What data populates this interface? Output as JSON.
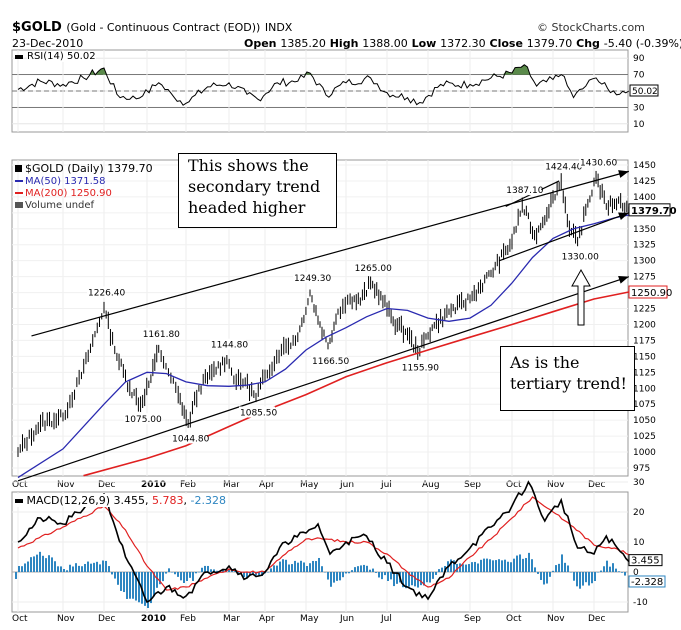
{
  "header": {
    "symbol": "$GOLD",
    "name": "(Gold - Continuous Contract (EOD))",
    "exchange": "INDX",
    "source": "© StockCharts.com",
    "date": "23-Dec-2010",
    "open_label": "Open",
    "open": "1385.20",
    "high_label": "High",
    "high": "1388.00",
    "low_label": "Low",
    "low": "1372.30",
    "close_label": "Close",
    "close": "1379.70",
    "chg_label": "Chg",
    "chg": "-5.40 (-0.39%)"
  },
  "rsi_panel": {
    "label": "RSI(14) 50.02",
    "value_tag": "50.02",
    "ticks": [
      "90",
      "70",
      "50",
      "30",
      "10"
    ]
  },
  "price_panel": {
    "legend": [
      "$GOLD (Daily) 1379.70",
      "MA(50) 1371.58",
      "MA(200) 1250.90",
      "Volume undef"
    ],
    "last_price_tag": "1379.70",
    "ma200_tag": "1250.90",
    "y_ticks": [
      "1450",
      "1425",
      "1400",
      "1375",
      "1350",
      "1325",
      "1300",
      "1275",
      "1250",
      "1225",
      "1200",
      "1175",
      "1150",
      "1125",
      "1100",
      "1075",
      "1050",
      "1025",
      "1000",
      "975"
    ],
    "annotations": [
      "1226.40",
      "1161.80",
      "1075.00",
      "1144.80",
      "1044.80",
      "1085.50",
      "1249.30",
      "1166.50",
      "1265.00",
      "1155.90",
      "1387.10",
      "1424.40",
      "1430.60",
      "1330.00"
    ]
  },
  "callouts": {
    "secondary": "This shows the secondary trend headed higher",
    "tertiary": "As is the tertiary trend!"
  },
  "macd_panel": {
    "label": "MACD(12,26,9)",
    "v1": "3.455",
    "v2": "5.783",
    "v3": "-2.328",
    "ticks": [
      "30",
      "20",
      "10",
      "0",
      "-10"
    ],
    "tag1": "3.455",
    "tag2": "-2.328"
  },
  "x_axis": {
    "labels": [
      "Oct",
      "Nov",
      "Dec",
      "2010",
      "Feb",
      "Mar",
      "Apr",
      "May",
      "Jun",
      "Jul",
      "Aug",
      "Sep",
      "Oct",
      "Nov",
      "Dec"
    ]
  },
  "colors": {
    "price": "#000000",
    "ma50": "#2a2ab0",
    "ma200": "#e02020",
    "macd_signal": "#e02020",
    "histogram": "#2e86c1",
    "rsi_fill": "#5a8a4a"
  },
  "chart_data": {
    "type": "line",
    "title": "$GOLD (Gold - Continuous Contract (EOD))",
    "x_unit": "month index (0 = Oct 2009, 14 = Dec 2010)",
    "ylim": [
      960,
      1460
    ],
    "key_points": [
      {
        "x": 0.0,
        "close": 1000
      },
      {
        "x": 0.5,
        "close": 1045
      },
      {
        "x": 1.0,
        "close": 1055
      },
      {
        "x": 1.45,
        "close": 1120
      },
      {
        "x": 2.0,
        "close": 1226.4
      },
      {
        "x": 2.25,
        "close": 1160
      },
      {
        "x": 2.6,
        "close": 1100
      },
      {
        "x": 2.85,
        "close": 1075.0
      },
      {
        "x": 3.1,
        "close": 1115
      },
      {
        "x": 3.3,
        "close": 1161.8
      },
      {
        "x": 3.55,
        "close": 1125
      },
      {
        "x": 3.8,
        "close": 1090
      },
      {
        "x": 4.05,
        "close": 1044.8
      },
      {
        "x": 4.3,
        "close": 1100
      },
      {
        "x": 4.6,
        "close": 1125
      },
      {
        "x": 4.95,
        "close": 1144.8
      },
      {
        "x": 5.2,
        "close": 1110
      },
      {
        "x": 5.45,
        "close": 1110
      },
      {
        "x": 5.75,
        "close": 1085.5
      },
      {
        "x": 6.0,
        "close": 1120
      },
      {
        "x": 6.4,
        "close": 1160
      },
      {
        "x": 6.8,
        "close": 1180
      },
      {
        "x": 7.1,
        "close": 1249.3
      },
      {
        "x": 7.35,
        "close": 1200
      },
      {
        "x": 7.55,
        "close": 1166.5
      },
      {
        "x": 7.8,
        "close": 1220
      },
      {
        "x": 8.1,
        "close": 1240
      },
      {
        "x": 8.35,
        "close": 1236
      },
      {
        "x": 8.6,
        "close": 1265.0
      },
      {
        "x": 8.85,
        "close": 1245
      },
      {
        "x": 9.15,
        "close": 1205
      },
      {
        "x": 9.5,
        "close": 1185
      },
      {
        "x": 9.75,
        "close": 1155.9
      },
      {
        "x": 10.1,
        "close": 1195
      },
      {
        "x": 10.5,
        "close": 1220
      },
      {
        "x": 11.0,
        "close": 1240
      },
      {
        "x": 11.5,
        "close": 1280
      },
      {
        "x": 12.0,
        "close": 1330
      },
      {
        "x": 12.25,
        "close": 1387.1
      },
      {
        "x": 12.55,
        "close": 1340
      },
      {
        "x": 12.75,
        "close": 1360
      },
      {
        "x": 13.0,
        "close": 1400
      },
      {
        "x": 13.2,
        "close": 1424.4
      },
      {
        "x": 13.4,
        "close": 1350
      },
      {
        "x": 13.6,
        "close": 1330.0
      },
      {
        "x": 13.85,
        "close": 1390
      },
      {
        "x": 14.05,
        "close": 1430.6
      },
      {
        "x": 14.3,
        "close": 1385
      },
      {
        "x": 14.6,
        "close": 1395
      },
      {
        "x": 14.85,
        "close": 1379.7
      }
    ],
    "ma50": [
      {
        "x": 0.0,
        "v": 960
      },
      {
        "x": 1.0,
        "v": 1005
      },
      {
        "x": 2.0,
        "v": 1075
      },
      {
        "x": 2.5,
        "v": 1110
      },
      {
        "x": 3.0,
        "v": 1125
      },
      {
        "x": 3.5,
        "v": 1123
      },
      {
        "x": 4.0,
        "v": 1110
      },
      {
        "x": 4.5,
        "v": 1104
      },
      {
        "x": 5.0,
        "v": 1103
      },
      {
        "x": 5.5,
        "v": 1105
      },
      {
        "x": 6.0,
        "v": 1110
      },
      {
        "x": 6.5,
        "v": 1130
      },
      {
        "x": 7.0,
        "v": 1160
      },
      {
        "x": 7.5,
        "v": 1180
      },
      {
        "x": 8.0,
        "v": 1195
      },
      {
        "x": 8.5,
        "v": 1212
      },
      {
        "x": 9.0,
        "v": 1225
      },
      {
        "x": 9.5,
        "v": 1222
      },
      {
        "x": 10.0,
        "v": 1210
      },
      {
        "x": 10.5,
        "v": 1205
      },
      {
        "x": 11.0,
        "v": 1210
      },
      {
        "x": 11.5,
        "v": 1230
      },
      {
        "x": 12.0,
        "v": 1265
      },
      {
        "x": 12.5,
        "v": 1305
      },
      {
        "x": 13.0,
        "v": 1335
      },
      {
        "x": 13.5,
        "v": 1350
      },
      {
        "x": 14.0,
        "v": 1358
      },
      {
        "x": 14.5,
        "v": 1367
      },
      {
        "x": 14.85,
        "v": 1371.58
      }
    ],
    "ma200": [
      {
        "x": 1.5,
        "v": 963
      },
      {
        "x": 3.0,
        "v": 990
      },
      {
        "x": 4.0,
        "v": 1010
      },
      {
        "x": 5.0,
        "v": 1040
      },
      {
        "x": 6.0,
        "v": 1065
      },
      {
        "x": 7.0,
        "v": 1090
      },
      {
        "x": 8.0,
        "v": 1118
      },
      {
        "x": 9.0,
        "v": 1140
      },
      {
        "x": 10.0,
        "v": 1160
      },
      {
        "x": 11.0,
        "v": 1180
      },
      {
        "x": 12.0,
        "v": 1200
      },
      {
        "x": 13.0,
        "v": 1220
      },
      {
        "x": 14.0,
        "v": 1240
      },
      {
        "x": 14.85,
        "v": 1250.9
      }
    ],
    "trendlines_price": [
      [
        {
          "x": 0.3,
          "v": 1182
        },
        {
          "x": 14.85,
          "v": 1440
        }
      ],
      [
        {
          "x": 0.0,
          "v": 955
        },
        {
          "x": 14.85,
          "v": 1275
        }
      ],
      [
        {
          "x": 11.7,
          "v": 1300
        },
        {
          "x": 14.85,
          "v": 1375
        }
      ]
    ],
    "annotation_points": [
      {
        "label": "1226.40",
        "x": 2.0,
        "v": 1226.4
      },
      {
        "label": "1161.80",
        "x": 3.3,
        "v": 1161.8
      },
      {
        "label": "1075.00",
        "x": 2.85,
        "v": 1075.0
      },
      {
        "label": "1144.80",
        "x": 4.95,
        "v": 1144.8
      },
      {
        "label": "1044.80",
        "x": 4.05,
        "v": 1044.8
      },
      {
        "label": "1085.50",
        "x": 5.75,
        "v": 1085.5
      },
      {
        "label": "1249.30",
        "x": 7.1,
        "v": 1249.3
      },
      {
        "label": "1166.50",
        "x": 7.55,
        "v": 1166.5
      },
      {
        "label": "1265.00",
        "x": 8.6,
        "v": 1265.0
      },
      {
        "label": "1155.90",
        "x": 9.75,
        "v": 1155.9
      },
      {
        "label": "1387.10",
        "x": 12.25,
        "v": 1387.1
      },
      {
        "label": "1424.40",
        "x": 13.2,
        "v": 1424.4
      },
      {
        "label": "1430.60",
        "x": 14.05,
        "v": 1430.6
      },
      {
        "label": "1330.00",
        "x": 13.6,
        "v": 1330.0
      }
    ],
    "rsi": {
      "ylim": [
        0,
        100
      ],
      "values": [
        {
          "x": 0.0,
          "v": 52
        },
        {
          "x": 0.5,
          "v": 62
        },
        {
          "x": 1.0,
          "v": 58
        },
        {
          "x": 1.5,
          "v": 66
        },
        {
          "x": 2.0,
          "v": 78
        },
        {
          "x": 2.3,
          "v": 46
        },
        {
          "x": 2.6,
          "v": 40
        },
        {
          "x": 2.9,
          "v": 44
        },
        {
          "x": 3.3,
          "v": 60
        },
        {
          "x": 3.7,
          "v": 42
        },
        {
          "x": 4.0,
          "v": 35
        },
        {
          "x": 4.5,
          "v": 55
        },
        {
          "x": 5.0,
          "v": 60
        },
        {
          "x": 5.5,
          "v": 46
        },
        {
          "x": 5.8,
          "v": 40
        },
        {
          "x": 6.3,
          "v": 60
        },
        {
          "x": 6.8,
          "v": 62
        },
        {
          "x": 7.1,
          "v": 72
        },
        {
          "x": 7.5,
          "v": 45
        },
        {
          "x": 8.0,
          "v": 60
        },
        {
          "x": 8.6,
          "v": 66
        },
        {
          "x": 9.0,
          "v": 48
        },
        {
          "x": 9.5,
          "v": 42
        },
        {
          "x": 9.8,
          "v": 36
        },
        {
          "x": 10.3,
          "v": 58
        },
        {
          "x": 11.0,
          "v": 58
        },
        {
          "x": 11.5,
          "v": 66
        },
        {
          "x": 12.0,
          "v": 72
        },
        {
          "x": 12.3,
          "v": 82
        },
        {
          "x": 12.6,
          "v": 56
        },
        {
          "x": 13.0,
          "v": 64
        },
        {
          "x": 13.2,
          "v": 70
        },
        {
          "x": 13.5,
          "v": 42
        },
        {
          "x": 13.8,
          "v": 56
        },
        {
          "x": 14.05,
          "v": 66
        },
        {
          "x": 14.4,
          "v": 48
        },
        {
          "x": 14.85,
          "v": 50.02
        }
      ]
    },
    "macd": {
      "ylim": [
        -15,
        35
      ],
      "macd": [
        {
          "x": 0.0,
          "v": 10
        },
        {
          "x": 0.5,
          "v": 18
        },
        {
          "x": 1.0,
          "v": 16
        },
        {
          "x": 1.5,
          "v": 21
        },
        {
          "x": 2.0,
          "v": 26
        },
        {
          "x": 2.5,
          "v": 5
        },
        {
          "x": 3.0,
          "v": -10
        },
        {
          "x": 3.5,
          "v": -5
        },
        {
          "x": 4.0,
          "v": -8
        },
        {
          "x": 4.5,
          "v": 0
        },
        {
          "x": 5.0,
          "v": 2
        },
        {
          "x": 5.5,
          "v": -2
        },
        {
          "x": 6.0,
          "v": 0
        },
        {
          "x": 6.5,
          "v": 10
        },
        {
          "x": 7.0,
          "v": 13
        },
        {
          "x": 7.3,
          "v": 16
        },
        {
          "x": 7.6,
          "v": 6
        },
        {
          "x": 8.0,
          "v": 10
        },
        {
          "x": 8.5,
          "v": 12
        },
        {
          "x": 9.0,
          "v": 3
        },
        {
          "x": 9.5,
          "v": -5
        },
        {
          "x": 10.0,
          "v": -9
        },
        {
          "x": 10.5,
          "v": 2
        },
        {
          "x": 11.0,
          "v": 8
        },
        {
          "x": 11.5,
          "v": 15
        },
        {
          "x": 12.0,
          "v": 22
        },
        {
          "x": 12.4,
          "v": 30
        },
        {
          "x": 12.8,
          "v": 17
        },
        {
          "x": 13.2,
          "v": 24
        },
        {
          "x": 13.6,
          "v": 8
        },
        {
          "x": 14.0,
          "v": 6
        },
        {
          "x": 14.3,
          "v": 12
        },
        {
          "x": 14.85,
          "v": 3.455
        }
      ],
      "signal": [
        {
          "x": 0.0,
          "v": 8
        },
        {
          "x": 1.0,
          "v": 15
        },
        {
          "x": 2.0,
          "v": 22
        },
        {
          "x": 2.5,
          "v": 14
        },
        {
          "x": 3.0,
          "v": 2
        },
        {
          "x": 3.5,
          "v": -6
        },
        {
          "x": 4.0,
          "v": -5
        },
        {
          "x": 4.5,
          "v": -2
        },
        {
          "x": 5.0,
          "v": 1
        },
        {
          "x": 5.5,
          "v": 0
        },
        {
          "x": 6.0,
          "v": 0
        },
        {
          "x": 6.5,
          "v": 6
        },
        {
          "x": 7.0,
          "v": 11
        },
        {
          "x": 7.5,
          "v": 11
        },
        {
          "x": 8.0,
          "v": 10
        },
        {
          "x": 8.5,
          "v": 10
        },
        {
          "x": 9.0,
          "v": 6
        },
        {
          "x": 9.5,
          "v": 0
        },
        {
          "x": 10.0,
          "v": -5
        },
        {
          "x": 10.5,
          "v": -2
        },
        {
          "x": 11.0,
          "v": 5
        },
        {
          "x": 11.5,
          "v": 11
        },
        {
          "x": 12.0,
          "v": 18
        },
        {
          "x": 12.5,
          "v": 25
        },
        {
          "x": 13.0,
          "v": 20
        },
        {
          "x": 13.5,
          "v": 15
        },
        {
          "x": 14.0,
          "v": 9
        },
        {
          "x": 14.5,
          "v": 8
        },
        {
          "x": 14.85,
          "v": 5.783
        }
      ]
    }
  }
}
